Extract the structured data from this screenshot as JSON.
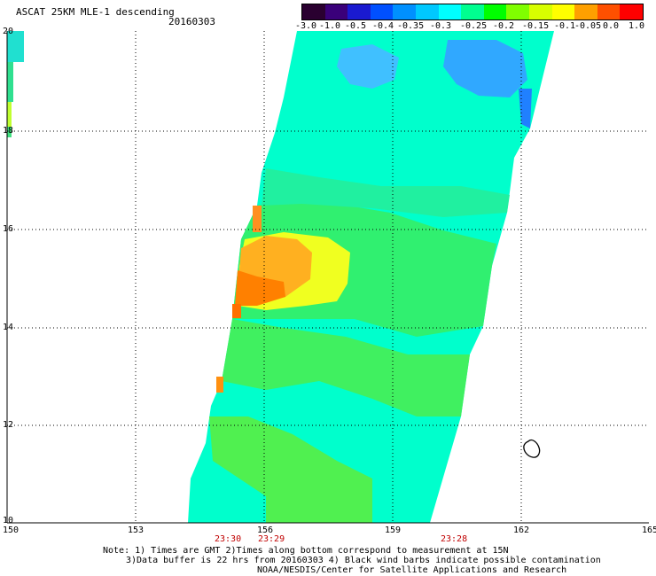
{
  "header": {
    "title": "ASCAT 25KM MLE-1 descending",
    "date": "20160303"
  },
  "colorbar": {
    "colors": [
      "#2a0030",
      "#3a007a",
      "#1a1ad0",
      "#0050ff",
      "#0090ff",
      "#00c8ff",
      "#00ffff",
      "#00ff90",
      "#00ff00",
      "#80ff00",
      "#d8ff00",
      "#ffff00",
      "#ffa000",
      "#ff5000",
      "#ff0000"
    ],
    "labels": [
      "-3.0",
      "-1.0",
      "-0.5",
      "-0.4",
      "-0.35",
      "-0.3",
      "-0.25",
      "-0.2",
      "-0.15",
      "-0.1",
      "-0.05",
      "0.0",
      "1.0"
    ]
  },
  "map": {
    "lon_labels": [
      "150",
      "153",
      "156",
      "159",
      "162",
      "165"
    ],
    "lat_labels": [
      "20",
      "18",
      "16",
      "14",
      "12",
      "10"
    ],
    "time_labels": [
      "23:30",
      "23:29",
      "23:28"
    ]
  },
  "footer": {
    "line1": "Note: 1) Times are GMT 2)Times along bottom correspond to measurement at 15N",
    "line2": "3)Data buffer is 22 hrs from 20160303 4) Black wind barbs indicate possible contamination",
    "line3": "NOAA/NESDIS/Center for Satellite Applications and Research"
  }
}
